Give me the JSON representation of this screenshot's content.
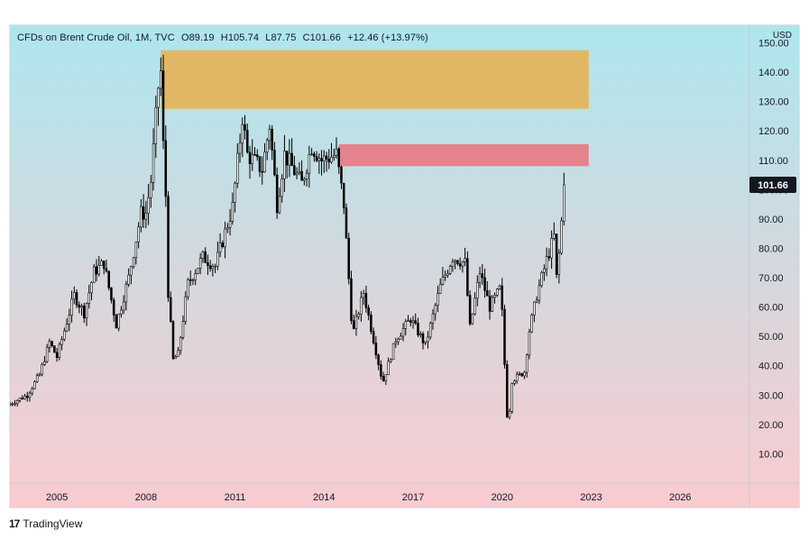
{
  "header": {
    "symbol": "CFDs on Brent Crude Oil, 1M, TVC",
    "open": "O89.19",
    "high": "H105.74",
    "low": "L87.75",
    "close": "C101.66",
    "change": "+12.46 (+13.97%)",
    "currency": "USD"
  },
  "footer": {
    "brand": "TradingView",
    "logo_glyph": "17"
  },
  "colors": {
    "bg_top": "#aee6ee",
    "bg_bottom": "#f9cbcf",
    "zone_upper": "#e0b865",
    "zone_lower": "#e4828d",
    "candle_up": "#ffffff",
    "candle_down": "#000000",
    "wick": "#000000",
    "last_price_bg": "#131722"
  },
  "chart_data": {
    "type": "candlestick",
    "title": "CFDs on Brent Crude Oil, 1M, TVC",
    "last_price": 101.66,
    "last_price_label": "101.66",
    "ylim": [
      0,
      156
    ],
    "y_ticks": [
      10,
      20,
      30,
      40,
      50,
      60,
      70,
      80,
      90,
      100,
      110,
      120,
      130,
      140,
      150
    ],
    "y_tick_labels": [
      "10.00",
      "20.00",
      "30.00",
      "40.00",
      "50.00",
      "60.00",
      "70.00",
      "80.00",
      "90.00",
      "100.00",
      "110.00",
      "120.00",
      "130.00",
      "140.00",
      "150.00"
    ],
    "x_range": [
      "2003-06",
      "2028-05"
    ],
    "x_ticks": [
      "2005-01",
      "2008-01",
      "2011-01",
      "2014-01",
      "2017-01",
      "2020-01",
      "2023-01",
      "2026-01"
    ],
    "x_tick_labels": [
      "2005",
      "2008",
      "2011",
      "2014",
      "2017",
      "2020",
      "2023",
      "2026"
    ],
    "zones": [
      {
        "x_start": "2008-07",
        "x_end": "2022-12",
        "y_low": 127.5,
        "y_high": 147.5
      },
      {
        "x_start": "2014-07",
        "x_end": "2022-12",
        "y_low": 108.0,
        "y_high": 115.5
      }
    ],
    "anchors": [
      [
        "2003-06",
        27
      ],
      [
        "2004-01",
        30
      ],
      [
        "2004-06",
        37
      ],
      [
        "2004-10",
        48
      ],
      [
        "2005-01",
        43
      ],
      [
        "2005-08",
        64
      ],
      [
        "2005-12",
        58
      ],
      [
        "2006-04",
        72
      ],
      [
        "2006-08",
        75
      ],
      [
        "2007-01",
        54
      ],
      [
        "2007-06",
        70
      ],
      [
        "2007-11",
        92
      ],
      [
        "2008-01",
        92
      ],
      [
        "2008-03",
        103
      ],
      [
        "2008-06",
        135
      ],
      [
        "2008-07",
        140
      ],
      [
        "2008-08",
        115
      ],
      [
        "2008-09",
        98
      ],
      [
        "2008-10",
        65
      ],
      [
        "2008-12",
        42
      ],
      [
        "2009-02",
        44
      ],
      [
        "2009-06",
        68
      ],
      [
        "2009-12",
        77
      ],
      [
        "2010-05",
        74
      ],
      [
        "2010-12",
        94
      ],
      [
        "2011-03",
        117
      ],
      [
        "2011-04",
        125
      ],
      [
        "2011-06",
        112
      ],
      [
        "2011-12",
        107
      ],
      [
        "2012-03",
        122
      ],
      [
        "2012-06",
        95
      ],
      [
        "2012-09",
        112
      ],
      [
        "2013-04",
        102
      ],
      [
        "2013-08",
        115
      ],
      [
        "2013-12",
        110
      ],
      [
        "2014-06",
        112
      ],
      [
        "2014-09",
        95
      ],
      [
        "2014-12",
        57
      ],
      [
        "2015-01",
        52
      ],
      [
        "2015-05",
        65
      ],
      [
        "2015-12",
        37
      ],
      [
        "2016-01",
        35
      ],
      [
        "2016-06",
        49
      ],
      [
        "2016-12",
        56
      ],
      [
        "2017-06",
        47
      ],
      [
        "2017-12",
        67
      ],
      [
        "2018-05",
        77
      ],
      [
        "2018-10",
        75
      ],
      [
        "2018-12",
        53
      ],
      [
        "2019-04",
        72
      ],
      [
        "2019-08",
        60
      ],
      [
        "2019-12",
        66
      ],
      [
        "2020-01",
        58
      ],
      [
        "2020-03",
        23
      ],
      [
        "2020-04",
        25
      ],
      [
        "2020-05",
        35
      ],
      [
        "2020-10",
        38
      ],
      [
        "2020-12",
        52
      ],
      [
        "2021-03",
        64
      ],
      [
        "2021-07",
        76
      ],
      [
        "2021-10",
        84
      ],
      [
        "2021-11",
        70
      ],
      [
        "2021-12",
        78
      ],
      [
        "2022-01",
        89
      ],
      [
        "2022-02",
        101.66
      ]
    ]
  }
}
